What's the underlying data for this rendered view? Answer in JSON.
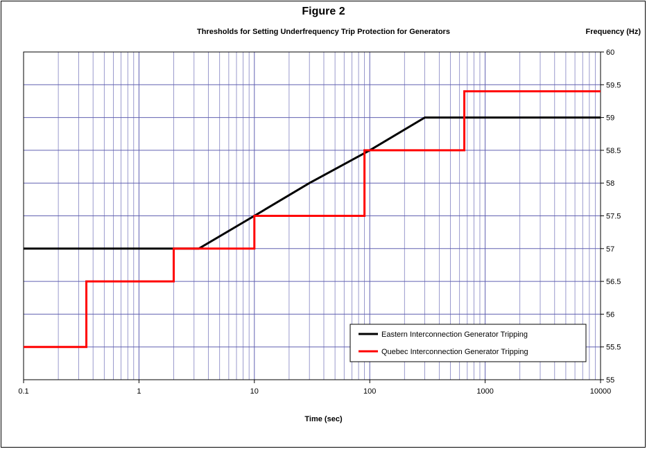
{
  "chart_data": {
    "type": "line",
    "title": "Figure 2",
    "subtitle": "Thresholds for Setting Underfrequency Trip Protection for Generators",
    "xlabel": "Time (sec)",
    "ylabel": "Frequency (Hz)",
    "xscale": "log",
    "xlim": [
      0.1,
      10000
    ],
    "ylim": [
      55,
      60
    ],
    "x_ticks": [
      "0.1",
      "1",
      "10",
      "100",
      "1000",
      "10000"
    ],
    "y_ticks": [
      "55",
      "55.5",
      "56",
      "56.5",
      "57",
      "57.5",
      "58",
      "58.5",
      "59",
      "59.5",
      "60"
    ],
    "grid": true,
    "legend_position": "bottom-right",
    "series": [
      {
        "name": "Eastern Interconnection Generator Tripping",
        "color": "#000000",
        "points": [
          [
            0.1,
            57.0
          ],
          [
            3.3,
            57.0
          ],
          [
            10,
            57.5
          ],
          [
            30,
            58.0
          ],
          [
            100,
            58.5
          ],
          [
            300,
            59.0
          ],
          [
            10000,
            59.0
          ]
        ]
      },
      {
        "name": "Quebec Interconnection Generator Tripping",
        "color": "#ff0000",
        "points": [
          [
            0.1,
            55.5
          ],
          [
            0.35,
            55.5
          ],
          [
            0.35,
            56.5
          ],
          [
            2,
            56.5
          ],
          [
            2,
            57.0
          ],
          [
            10,
            57.0
          ],
          [
            10,
            57.5
          ],
          [
            90,
            57.5
          ],
          [
            90,
            58.5
          ],
          [
            660,
            58.5
          ],
          [
            660,
            59.4
          ],
          [
            10000,
            59.4
          ]
        ]
      }
    ]
  }
}
